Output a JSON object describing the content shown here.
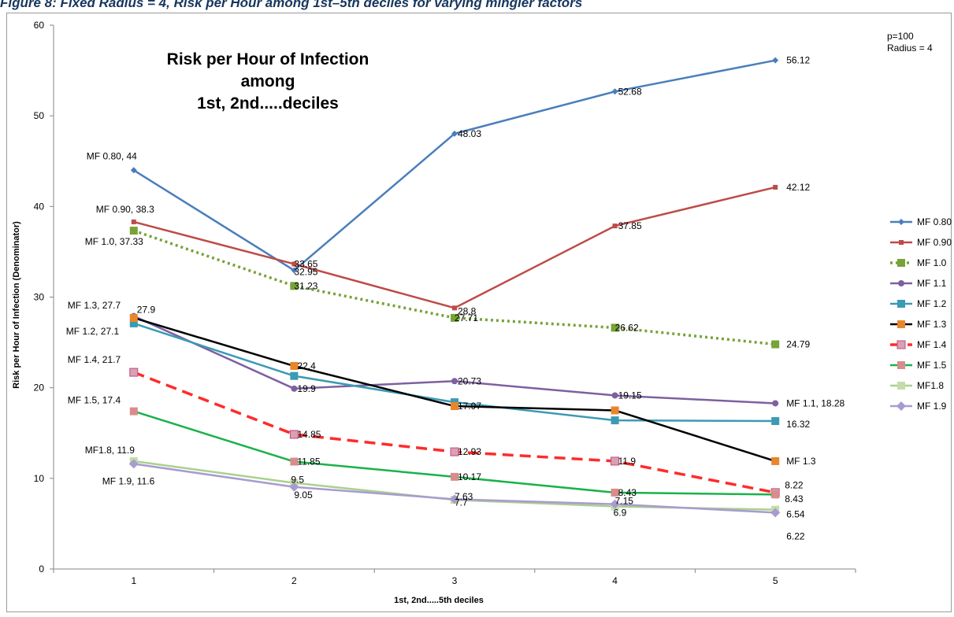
{
  "page": {
    "caption": "Figure 8: Fixed Radius = 4, Risk per Hour among 1st–5th deciles for varying mingler factors"
  },
  "colors": {
    "background": "#ffffff",
    "axis": "#868686",
    "frame": "#9a9a9a"
  },
  "chart_data": {
    "type": "line",
    "title": [
      "Risk per Hour of Infection",
      "among",
      "1st, 2nd.....deciles"
    ],
    "xlabel": "1st, 2nd.....5th deciles",
    "ylabel": "Risk per Hour of Infection (Denominator)",
    "x": [
      1,
      2,
      3,
      4,
      5
    ],
    "xlim": [
      0.5,
      5.5
    ],
    "ylim": [
      0,
      60
    ],
    "y_ticks": [
      0,
      10,
      20,
      30,
      40,
      50,
      60
    ],
    "grid": false,
    "legend_position": "right",
    "notes": [
      "p=100",
      "Radius = 4"
    ],
    "series": [
      {
        "name": "MF 0.80",
        "values": [
          44,
          32.95,
          48.03,
          52.68,
          56.12
        ],
        "color": "#4a7ebb",
        "dash": "solid",
        "marker": "diamond",
        "labels": [
          "MF 0.80, 44",
          "32.95",
          "48.03",
          "52.68",
          "56.12"
        ]
      },
      {
        "name": "MF 0.90",
        "values": [
          38.3,
          33.65,
          28.8,
          37.85,
          42.12
        ],
        "color": "#be4b48",
        "dash": "solid",
        "marker": "square-small",
        "labels": [
          "MF 0.90, 38.3",
          "33.65",
          "28.8",
          "37.85",
          "42.12"
        ]
      },
      {
        "name": "MF 1.0",
        "values": [
          37.33,
          31.23,
          27.71,
          26.62,
          24.79
        ],
        "color": "#77a337",
        "dash": "dotted",
        "marker": "square",
        "labels": [
          "MF 1.0, 37.33",
          "31.23",
          "27.71",
          "26.62",
          "24.79"
        ]
      },
      {
        "name": "MF 1.1",
        "values": [
          27.9,
          19.9,
          20.73,
          19.15,
          18.28
        ],
        "color": "#7d60a0",
        "dash": "solid",
        "marker": "circle",
        "labels": [
          "27.9",
          "19.9",
          "20.73",
          "19.15",
          "MF 1.1, 18.28"
        ]
      },
      {
        "name": "MF 1.2",
        "values": [
          27.1,
          21.3,
          18.4,
          16.4,
          16.32
        ],
        "color": "#3b9ab4",
        "dash": "solid",
        "marker": "square",
        "labels": [
          "MF 1.2, 27.1",
          "",
          "",
          "",
          "16.32"
        ]
      },
      {
        "name": "MF 1.3",
        "values": [
          27.7,
          22.4,
          17.97,
          17.5,
          11.9
        ],
        "color": "#000000",
        "dash": "solid",
        "marker": "square-orange",
        "labels": [
          "MF 1.3, 27.7",
          "22.4",
          "17.97",
          "",
          "MF 1.3"
        ]
      },
      {
        "name": "MF 1.4",
        "values": [
          21.7,
          14.85,
          12.93,
          11.9,
          8.43
        ],
        "color": "#ff2b2b",
        "dash": "dashed",
        "marker": "square-pink",
        "labels": [
          "MF 1.4, 21.7",
          "14.85",
          "12.93",
          "11.9",
          "8.43"
        ]
      },
      {
        "name": "MF 1.5",
        "values": [
          17.4,
          11.85,
          10.17,
          8.43,
          8.22
        ],
        "color": "#19b24b",
        "dash": "solid",
        "marker": "square-salmon",
        "labels": [
          "MF 1.5, 17.4",
          "11.85",
          "10.17",
          "8.43",
          "8.22"
        ]
      },
      {
        "name": "MF1.8",
        "values": [
          11.9,
          9.5,
          7.63,
          6.9,
          6.54
        ],
        "color": "#a9d18e",
        "dash": "solid",
        "marker": "square-light",
        "labels": [
          "MF1.8, 11.9",
          "9.5",
          "7.63",
          "6.9",
          "6.54"
        ]
      },
      {
        "name": "MF 1.9",
        "values": [
          11.6,
          9.05,
          7.7,
          7.15,
          6.22
        ],
        "color": "#a99bd0",
        "dash": "solid",
        "marker": "diamond-large",
        "labels": [
          "MF 1.9, 11.6",
          "9.05",
          "7.7",
          "7.15",
          "6.22"
        ]
      }
    ]
  }
}
